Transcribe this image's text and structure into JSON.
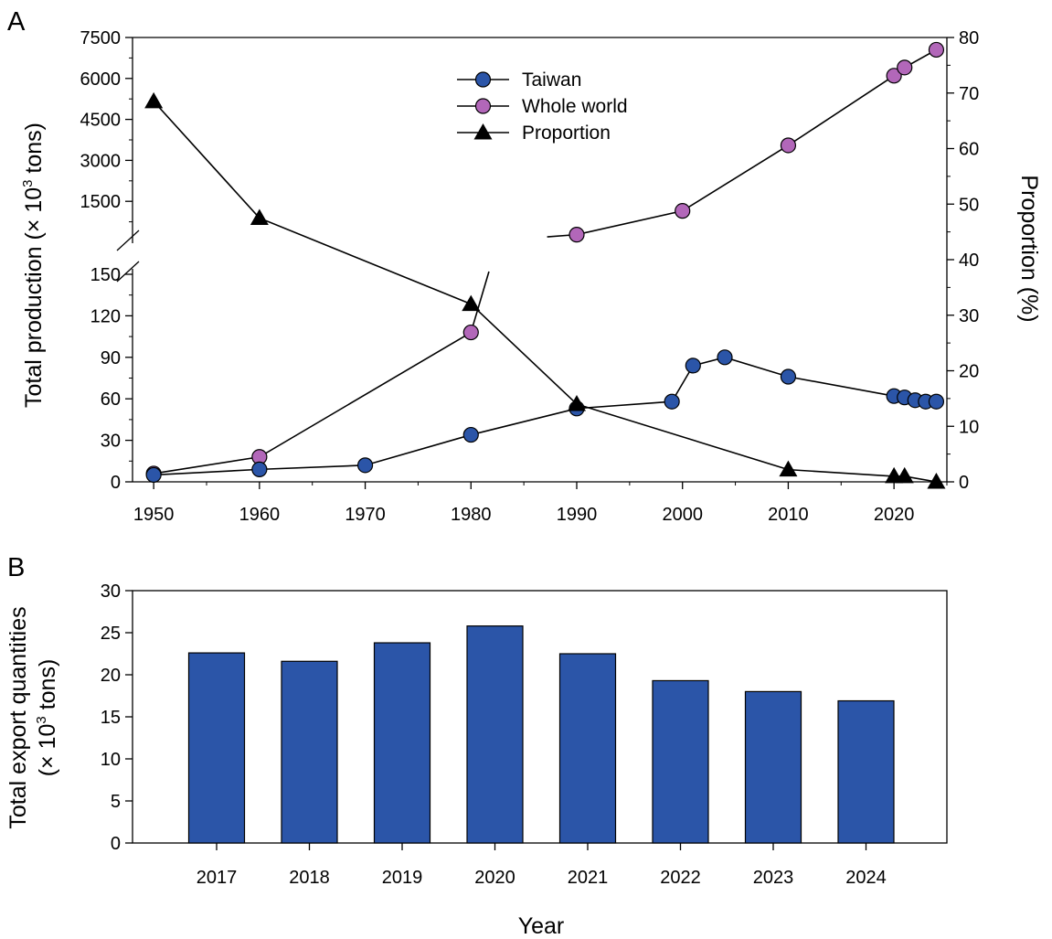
{
  "panel_a_label": "A",
  "panel_b_label": "B",
  "colors": {
    "taiwan": "#2b55a8",
    "world": "#b267b9",
    "proportion": "#000000",
    "bar": "#2b55a8"
  },
  "chart_data": [
    {
      "type": "line",
      "panel": "A",
      "ylabel_left": {
        "main": "Total production (× 10",
        "sup": "3",
        "end": " tons)"
      },
      "ylabel_right": "Proportion (%)",
      "x_ticks": [
        "1950",
        "1960",
        "1970",
        "1980",
        "1990",
        "2000",
        "2010",
        "2020"
      ],
      "xlim": [
        1948,
        2025
      ],
      "y_left_broken_axis": true,
      "y_left_lower": {
        "range": [
          0,
          150
        ],
        "ticks": [
          "0",
          "30",
          "60",
          "90",
          "120",
          "150"
        ]
      },
      "y_left_upper": {
        "range": [
          0,
          7500
        ],
        "ticks": [
          "1500",
          "3000",
          "4500",
          "6000",
          "7500"
        ]
      },
      "y_right": {
        "range": [
          0,
          80
        ],
        "ticks": [
          "0",
          "10",
          "20",
          "30",
          "40",
          "50",
          "60",
          "70",
          "80"
        ]
      },
      "legend": {
        "placement": "top-center"
      },
      "series": [
        {
          "name": "Taiwan",
          "marker": "circle",
          "axis": "left",
          "points": [
            {
              "x": 1950,
              "y": 5
            },
            {
              "x": 1960,
              "y": 9
            },
            {
              "x": 1970,
              "y": 12
            },
            {
              "x": 1980,
              "y": 34
            },
            {
              "x": 1990,
              "y": 53
            },
            {
              "x": 1999,
              "y": 58
            },
            {
              "x": 2001,
              "y": 84
            },
            {
              "x": 2004,
              "y": 90
            },
            {
              "x": 2010,
              "y": 76
            },
            {
              "x": 2020,
              "y": 62
            },
            {
              "x": 2021,
              "y": 61
            },
            {
              "x": 2022,
              "y": 59
            },
            {
              "x": 2023,
              "y": 58
            },
            {
              "x": 2024,
              "y": 58
            }
          ]
        },
        {
          "name": "Whole world",
          "marker": "circle",
          "axis": "left",
          "points": [
            {
              "x": 1950,
              "y": 6
            },
            {
              "x": 1960,
              "y": 18
            },
            {
              "x": 1980,
              "y": 108
            },
            {
              "x": 1990,
              "y": 280
            },
            {
              "x": 2000,
              "y": 1150
            },
            {
              "x": 2010,
              "y": 3550
            },
            {
              "x": 2020,
              "y": 6100
            },
            {
              "x": 2021,
              "y": 6400
            },
            {
              "x": 2024,
              "y": 7050
            }
          ]
        },
        {
          "name": "Proportion",
          "marker": "triangle",
          "axis": "right",
          "points": [
            {
              "x": 1950,
              "y": 68.5
            },
            {
              "x": 1960,
              "y": 47.5
            },
            {
              "x": 1980,
              "y": 32
            },
            {
              "x": 1990,
              "y": 14
            },
            {
              "x": 2010,
              "y": 2.2
            },
            {
              "x": 2020,
              "y": 1
            },
            {
              "x": 2021,
              "y": 1
            },
            {
              "x": 2024,
              "y": 0
            }
          ]
        }
      ]
    },
    {
      "type": "bar",
      "panel": "B",
      "categories": [
        "2017",
        "2018",
        "2019",
        "2020",
        "2021",
        "2022",
        "2023",
        "2024"
      ],
      "values": [
        22.6,
        21.6,
        23.8,
        25.8,
        22.5,
        19.3,
        18.0,
        16.9
      ],
      "ylim": [
        0,
        30
      ],
      "y_ticks": [
        "0",
        "5",
        "10",
        "15",
        "20",
        "25",
        "30"
      ],
      "ylabel_line1": "Total export quantities",
      "ylabel_line2": {
        "main": "(× 10",
        "sup": "3",
        "end": " tons)"
      },
      "xlabel": "Year"
    }
  ]
}
